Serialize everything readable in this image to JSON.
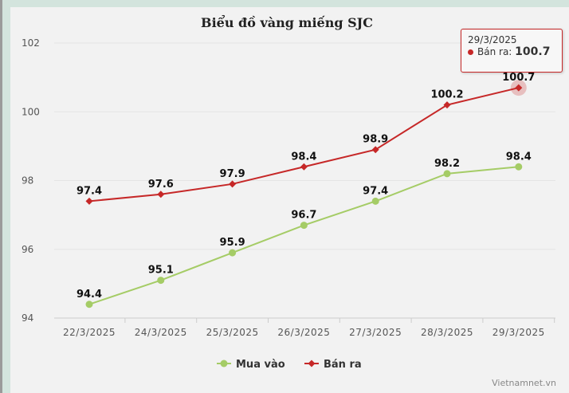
{
  "chart_data": {
    "type": "line",
    "title": "Biểu đồ vàng miếng SJC",
    "categories": [
      "22/3/2025",
      "24/3/2025",
      "25/3/2025",
      "26/3/2025",
      "27/3/2025",
      "28/3/2025",
      "29/3/2025"
    ],
    "series": [
      {
        "name": "Mua vào",
        "color": "#a5cc66",
        "marker": "circle",
        "values": [
          94.4,
          95.1,
          95.9,
          96.7,
          97.4,
          98.2,
          98.4
        ]
      },
      {
        "name": "Bán ra",
        "color": "#c62828",
        "marker": "diamond",
        "values": [
          97.4,
          97.6,
          97.9,
          98.4,
          98.9,
          100.2,
          100.7
        ]
      }
    ],
    "yticks": [
      94,
      96,
      98,
      100,
      102
    ],
    "ylim": [
      94,
      102
    ],
    "grid": true,
    "legend": "bottom-center"
  },
  "tooltip": {
    "date": "29/3/2025",
    "label": "Bán ra:",
    "value": "100.7"
  },
  "credit": "Vietnamnet.vn"
}
